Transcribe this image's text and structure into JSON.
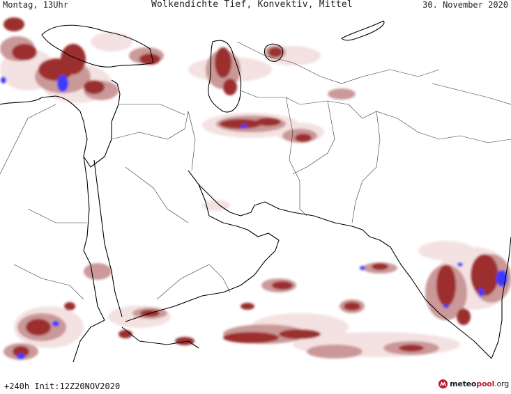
{
  "header": {
    "left": "Montag, 13Uhr",
    "center": "Wolkendichte   Tief, Konvektiv, Mittel",
    "right": "30. November 2020"
  },
  "footer": {
    "run_info": "+240h  Init:12Z20NOV2020",
    "logo": {
      "part1": "meteo",
      "part2": "pool",
      "part3": ".org"
    }
  },
  "legend_colors": {
    "low_density": "#f3dede",
    "medium_density": "#c99494",
    "high_density": "#9c2f2f",
    "convective": "#3b3bff",
    "coastline": "#000000",
    "border": "#333333"
  }
}
